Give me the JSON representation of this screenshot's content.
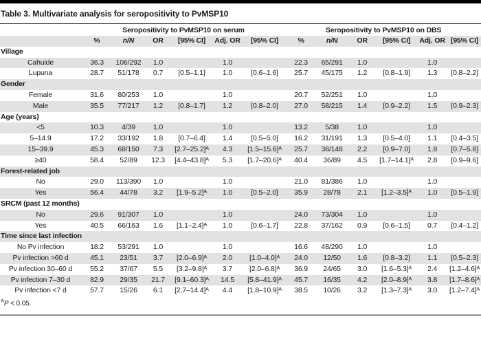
{
  "table": {
    "title": "Table 3. Multivariate analysis for seropositivity to PvMSP10",
    "group_headers": [
      "Seropositivity to PvMSP10 on serum",
      "Seropositivity to PvMSP10 on DBS"
    ],
    "column_headers": [
      "%",
      "n/N",
      "OR",
      "[95% CI]",
      "Adj. OR",
      "[95% CI]"
    ],
    "sections": [
      {
        "header": "Village",
        "rows": [
          {
            "label": "Cahuide",
            "cells": [
              "36.3",
              "106/292",
              "1.0",
              "",
              "1.0",
              "",
              "22.3",
              "65/291",
              "1.0",
              "",
              "1.0",
              ""
            ]
          },
          {
            "label": "Lupuna",
            "cells": [
              "28.7",
              "51/178",
              "0.7",
              "[0.5–1.1]",
              "1.0",
              "[0.6–1.6]",
              "25.7",
              "45/175",
              "1.2",
              "[0.8–1.9]",
              "1.3",
              "[0.8–2.2]"
            ]
          }
        ]
      },
      {
        "header": "Gender",
        "rows": [
          {
            "label": "Female",
            "cells": [
              "31.6",
              "80/253",
              "1.0",
              "",
              "1.0",
              "",
              "20.7",
              "52/251",
              "1.0",
              "",
              "1.0",
              ""
            ]
          },
          {
            "label": "Male",
            "cells": [
              "35.5",
              "77/217",
              "1.2",
              "[0.8–1.7]",
              "1.2",
              "[0.8–2.0]",
              "27.0",
              "58/215",
              "1.4",
              "[0.9–2.2]",
              "1.5",
              "[0.9–2.3]"
            ]
          }
        ]
      },
      {
        "header": "Age (years)",
        "rows": [
          {
            "label": "<5",
            "cells": [
              "10.3",
              "4/39",
              "1.0",
              "",
              "1.0",
              "",
              "13.2",
              "5/38",
              "1.0",
              "",
              "1.0",
              ""
            ]
          },
          {
            "label": "5–14.9",
            "cells": [
              "17.2",
              "33/192",
              "1.8",
              "[0.7–6.4]",
              "1.4",
              "[0.5–5.0]",
              "16.2",
              "31/191",
              "1.3",
              "[0.5–4.0]",
              "1.1",
              "[0.4–3.5]"
            ]
          },
          {
            "label": "15–39.9",
            "cells": [
              "45.3",
              "68/150",
              "7.3",
              "[2.7–25.2]ᴬ",
              "4.3",
              "[1.5–15.6]ᴬ",
              "25.7",
              "38/148",
              "2.2",
              "[0.9–7.0]",
              "1.8",
              "[0.7–5.8]"
            ]
          },
          {
            "label": "≥40",
            "cells": [
              "58.4",
              "52/89",
              "12.3",
              "[4.4–43.8]ᴬ",
              "5.3",
              "[1.7–20.6]ᴬ",
              "40.4",
              "36/89",
              "4.5",
              "[1.7–14.1]ᴬ",
              "2.8",
              "[0.9–9.6]"
            ]
          }
        ]
      },
      {
        "header": "Forest-related job",
        "rows": [
          {
            "label": "No",
            "cells": [
              "29.0",
              "113/390",
              "1.0",
              "",
              "1.0",
              "",
              "21.0",
              "81/386",
              "1.0",
              "",
              "1.0",
              ""
            ]
          },
          {
            "label": "Yes",
            "cells": [
              "56.4",
              "44/78",
              "3.2",
              "[1.9–5.2]ᴬ",
              "1.0",
              "[0.5–2.0]",
              "35.9",
              "28/78",
              "2.1",
              "[1.2–3.5]ᴬ",
              "1.0",
              "[0.5–1.9]"
            ]
          }
        ]
      },
      {
        "header": "SRCM (past 12 months)",
        "rows": [
          {
            "label": "No",
            "cells": [
              "29.6",
              "91/307",
              "1.0",
              "",
              "1.0",
              "",
              "24.0",
              "73/304",
              "1.0",
              "",
              "1.0",
              ""
            ]
          },
          {
            "label": "Yes",
            "cells": [
              "40.5",
              "66/163",
              "1.6",
              "[1.1–2.4]ᴬ",
              "1.0",
              "[0.6–1.7]",
              "22.8",
              "37/162",
              "0.9",
              "[0.6–1.5]",
              "0.7",
              "[0.4–1.2]"
            ]
          }
        ]
      },
      {
        "header": "Time since last infection",
        "rows": [
          {
            "label": "No Pv infection",
            "cells": [
              "18.2",
              "53/291",
              "1.0",
              "",
              "1.0",
              "",
              "16.6",
              "48/290",
              "1.0",
              "",
              "1.0",
              ""
            ]
          },
          {
            "label": "Pv infection >60 d",
            "cells": [
              "45.1",
              "23/51",
              "3.7",
              "[2.0–6.9]ᴬ",
              "2.0",
              "[1.0–4.0]ᴬ",
              "24.0",
              "12/50",
              "1.6",
              "[0.8–3.2]",
              "1.1",
              "[0.5–2.3]"
            ]
          },
          {
            "label": "Pv infection 30–60 d",
            "cells": [
              "55.2",
              "37/67",
              "5.5",
              "[3.2–9.8]ᴬ",
              "3.7",
              "[2.0–6.8]ᴬ",
              "36.9",
              "24/65",
              "3.0",
              "[1.6–5.3]ᴬ",
              "2.4",
              "[1.2–4.6]ᴬ"
            ]
          },
          {
            "label": "Pv infection 7–30 d",
            "cells": [
              "82.9",
              "29/35",
              "21.7",
              "[9.1–60.3]ᴬ",
              "14.5",
              "[5.8–41.9]ᴬ",
              "45.7",
              "16/35",
              "4.2",
              "[2.0–8.9]ᴬ",
              "3.8",
              "[1.7–8.6]ᴬ"
            ]
          },
          {
            "label": "Pv infection <7 d",
            "cells": [
              "57.7",
              "15/26",
              "6.1",
              "[2.7–14.4]ᴬ",
              "4.4",
              "[1.8–10.9]ᴬ",
              "38.5",
              "10/26",
              "3.2",
              "[1.3–7.3]ᴬ",
              "3.0",
              "[1.2–7.4]ᴬ"
            ]
          }
        ]
      }
    ],
    "footnote_sup": "A",
    "footnote_p": "P",
    "footnote_rest": " < 0.05.",
    "colors": {
      "stripe": "#e2e2e2",
      "top_bar": "#000000",
      "bottom_rule": "#8f8f8f"
    }
  }
}
